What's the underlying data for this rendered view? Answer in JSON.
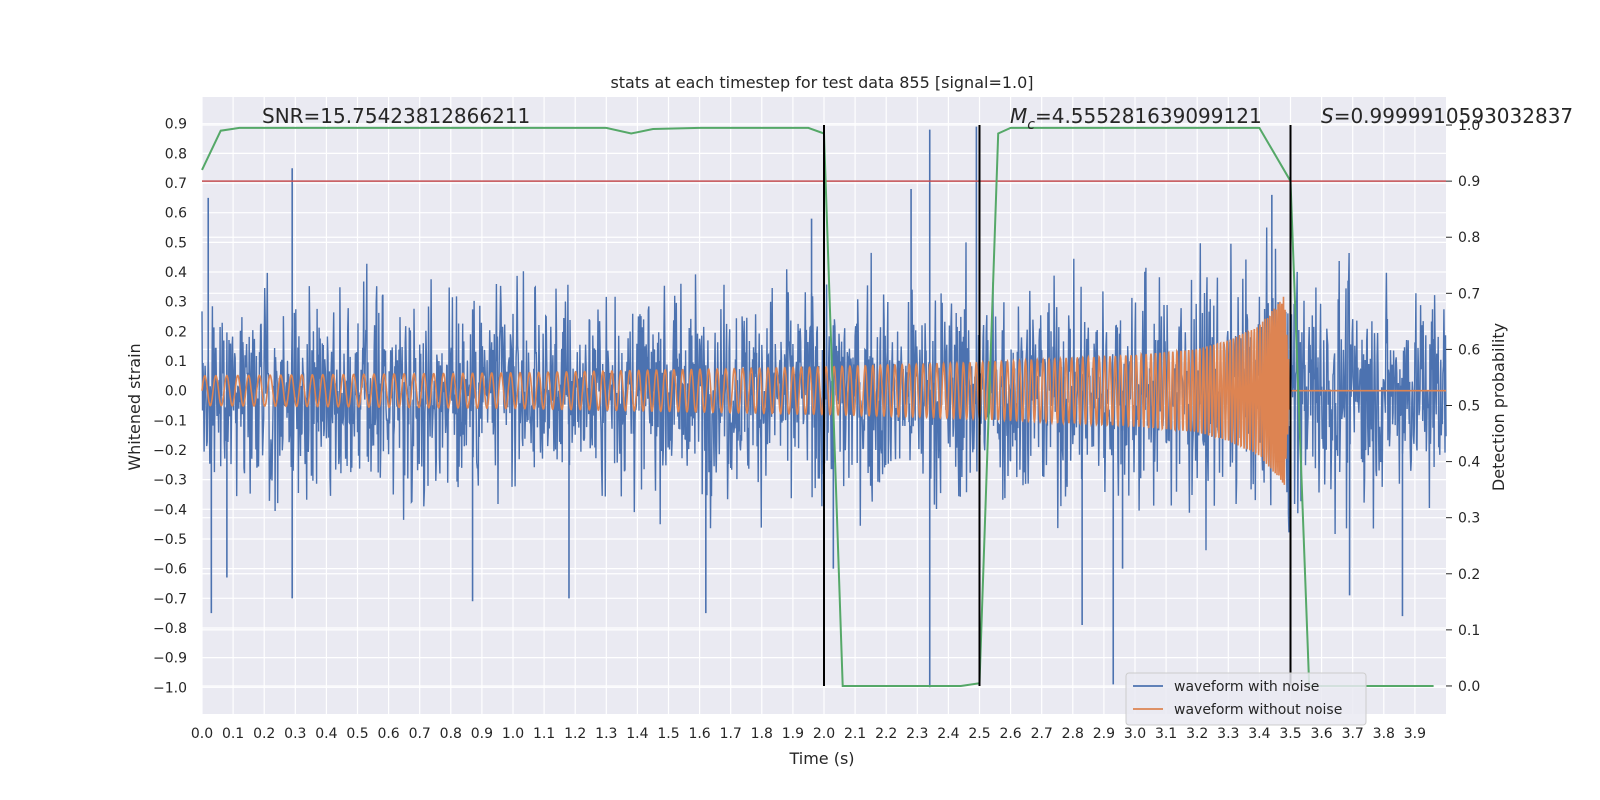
{
  "chart_data": {
    "type": "line",
    "title": "stats at each timestep for test data 855 [signal=1.0]",
    "xlabel": "Time (s)",
    "ylabel": "Whitened strain",
    "y2label": "Detection probability",
    "xlim": [
      0.0,
      4.0
    ],
    "ylim": [
      -1.09,
      0.99
    ],
    "y2lim": [
      -0.05,
      1.05
    ],
    "grid": true,
    "legend_position": "bottom-right",
    "x_ticks": [
      "0.0",
      "0.1",
      "0.2",
      "0.3",
      "0.4",
      "0.5",
      "0.6",
      "0.7",
      "0.8",
      "0.9",
      "1.0",
      "1.1",
      "1.2",
      "1.3",
      "1.4",
      "1.5",
      "1.6",
      "1.7",
      "1.8",
      "1.9",
      "2.0",
      "2.1",
      "2.2",
      "2.3",
      "2.4",
      "2.5",
      "2.6",
      "2.7",
      "2.8",
      "2.9",
      "3.0",
      "3.1",
      "3.2",
      "3.3",
      "3.4",
      "3.5",
      "3.6",
      "3.7",
      "3.8",
      "3.9"
    ],
    "y_ticks": [
      "0.9",
      "0.8",
      "0.7",
      "0.6",
      "0.5",
      "0.4",
      "0.3",
      "0.2",
      "0.1",
      "0.0",
      "−0.1",
      "−0.2",
      "−0.3",
      "−0.4",
      "−0.5",
      "−0.6",
      "−0.7",
      "−0.8",
      "−0.9",
      "−1.0"
    ],
    "y2_ticks": [
      "1.0",
      "0.9",
      "0.8",
      "0.7",
      "0.6",
      "0.5",
      "0.4",
      "0.3",
      "0.2",
      "0.1",
      "0.0"
    ],
    "annotations": {
      "snr": "SNR=15.75423812866211",
      "mc_symbol": "M",
      "mc_sub": "c",
      "mc_value": "=4.555281639099121",
      "s_symbol": "S",
      "s_value": "=0.9999910593032837"
    },
    "series": [
      {
        "name": "waveform with noise",
        "color": "#4c72b0",
        "envelope": {
          "t": [
            0.0,
            0.5,
            1.0,
            1.5,
            2.0,
            2.5,
            3.0,
            3.3,
            3.5,
            4.0
          ],
          "upper": [
            0.45,
            0.45,
            0.45,
            0.45,
            0.5,
            0.5,
            0.5,
            0.55,
            0.55,
            0.45
          ],
          "lower": [
            -0.45,
            -0.45,
            -0.45,
            -0.45,
            -0.5,
            -0.5,
            -0.5,
            -0.55,
            -0.55,
            -0.45
          ]
        },
        "spikes": [
          {
            "t": 0.02,
            "v": 0.65
          },
          {
            "t": 0.03,
            "v": -0.75
          },
          {
            "t": 0.29,
            "v": 0.75
          },
          {
            "t": 0.29,
            "v": -0.7
          },
          {
            "t": 0.08,
            "v": -0.63
          },
          {
            "t": 0.87,
            "v": -0.71
          },
          {
            "t": 1.18,
            "v": -0.7
          },
          {
            "t": 1.62,
            "v": -0.75
          },
          {
            "t": 2.03,
            "v": -0.6
          },
          {
            "t": 2.28,
            "v": 0.68
          },
          {
            "t": 2.34,
            "v": 0.88
          },
          {
            "t": 2.34,
            "v": -1.0
          },
          {
            "t": 2.49,
            "v": 0.89
          },
          {
            "t": 2.83,
            "v": -0.79
          },
          {
            "t": 2.93,
            "v": -0.99
          },
          {
            "t": 2.96,
            "v": -0.6
          },
          {
            "t": 3.44,
            "v": 0.66
          },
          {
            "t": 3.86,
            "v": -0.76
          },
          {
            "t": 3.69,
            "v": -0.69
          },
          {
            "t": 1.96,
            "v": 0.58
          }
        ]
      },
      {
        "name": "waveform without noise",
        "color": "#dd8452",
        "amplitude": {
          "t": [
            0.0,
            1.0,
            2.0,
            2.5,
            3.0,
            3.2,
            3.3,
            3.4,
            3.45,
            3.48,
            3.5,
            4.0
          ],
          "amp": [
            0.05,
            0.06,
            0.08,
            0.095,
            0.12,
            0.14,
            0.17,
            0.22,
            0.28,
            0.32,
            0.0,
            0.0
          ]
        },
        "frequency_hz": {
          "t": [
            0.0,
            2.0,
            3.0,
            3.4,
            3.5
          ],
          "f": [
            28,
            38,
            60,
            110,
            200
          ]
        }
      },
      {
        "name": "detection probability",
        "color": "#55a868",
        "axis": "right",
        "x": [
          0.0,
          0.06,
          0.12,
          0.5,
          1.0,
          1.3,
          1.38,
          1.45,
          1.6,
          1.95,
          2.0,
          2.06,
          2.2,
          2.44,
          2.5,
          2.56,
          2.6,
          3.0,
          3.4,
          3.5,
          3.56,
          3.62,
          3.96
        ],
        "y": [
          0.92,
          0.99,
          0.995,
          0.995,
          0.995,
          0.995,
          0.985,
          0.993,
          0.995,
          0.995,
          0.985,
          0.0,
          0.0,
          0.0,
          0.005,
          0.985,
          0.995,
          0.995,
          0.995,
          0.9,
          0.0,
          0.0,
          0.0
        ]
      }
    ],
    "threshold": {
      "value": 0.9,
      "axis": "right",
      "color": "#c44e52"
    },
    "vertical_lines": [
      2.0,
      2.5,
      3.5
    ],
    "vertical_line_color": "#000000"
  }
}
